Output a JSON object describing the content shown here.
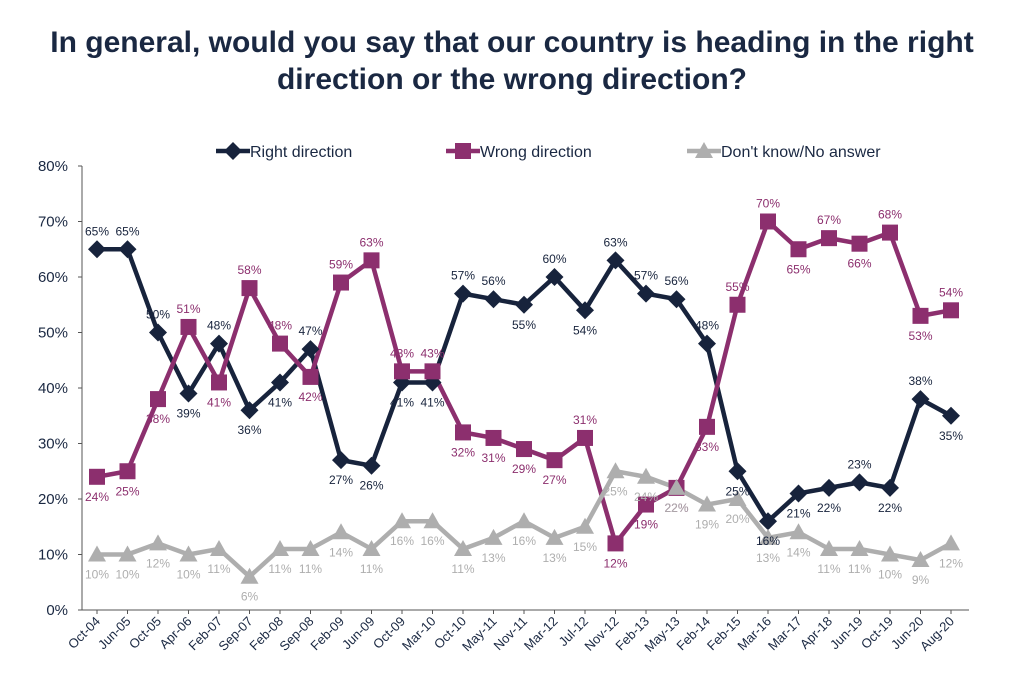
{
  "chart_data": {
    "type": "line",
    "title": [
      "In general, would you say that our country is heading in the right",
      "direction or the wrong direction?"
    ],
    "categories": [
      "Oct-04",
      "Jun-05",
      "Oct-05",
      "Apr-06",
      "Feb-07",
      "Sep-07",
      "Feb-08",
      "Sep-08",
      "Feb-09",
      "Jun-09",
      "Oct-09",
      "Mar-10",
      "Oct-10",
      "May-11",
      "Nov-11",
      "Mar-12",
      "Jul-12",
      "Nov-12",
      "Feb-13",
      "May-13",
      "Feb-14",
      "Feb-15",
      "Mar-16",
      "Mar-17",
      "Apr-18",
      "Jun-19",
      "Oct-19",
      "Jun-20",
      "Aug-20"
    ],
    "series": [
      {
        "name": "Right direction",
        "color": "#17233c",
        "marker": "diamond",
        "values": [
          65,
          65,
          50,
          39,
          48,
          36,
          41,
          47,
          27,
          26,
          41,
          41,
          57,
          56,
          55,
          60,
          54,
          63,
          57,
          56,
          48,
          25,
          16,
          21,
          22,
          23,
          22,
          38,
          35
        ]
      },
      {
        "name": "Wrong direction",
        "color": "#8c2f6e",
        "marker": "square",
        "values": [
          24,
          25,
          38,
          51,
          41,
          58,
          48,
          42,
          59,
          63,
          43,
          43,
          32,
          31,
          29,
          27,
          31,
          12,
          19,
          22,
          33,
          55,
          70,
          65,
          67,
          66,
          68,
          53,
          54
        ]
      },
      {
        "name": "Don't know/No answer",
        "color": "#aeaeae",
        "marker": "triangle",
        "values": [
          10,
          10,
          12,
          10,
          11,
          6,
          11,
          11,
          14,
          11,
          16,
          16,
          11,
          13,
          16,
          13,
          15,
          25,
          24,
          22,
          19,
          20,
          13,
          14,
          11,
          11,
          10,
          9,
          12
        ]
      }
    ],
    "ylim": [
      0,
      80
    ],
    "yticks": [
      "0%",
      "10%",
      "20%",
      "30%",
      "40%",
      "50%",
      "60%",
      "70%",
      "80%"
    ],
    "legend_position": "top"
  }
}
